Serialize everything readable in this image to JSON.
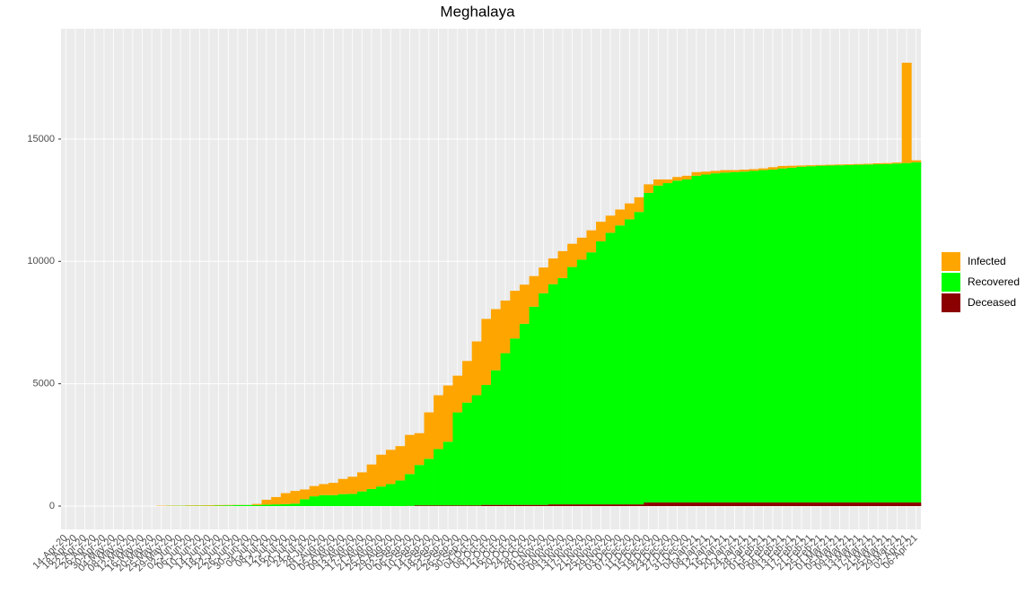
{
  "chart_data": {
    "type": "stacked_bar",
    "title": "Meghalaya",
    "categories": [
      "14-Apr-20",
      "18-Apr-20",
      "22-Apr-20",
      "26-Apr-20",
      "30-Apr-20",
      "04-May-20",
      "08-May-20",
      "12-May-20",
      "16-May-20",
      "20-May-20",
      "25-May-20",
      "29-May-20",
      "02-Jun-20",
      "06-Jun-20",
      "10-Jun-20",
      "14-Jun-20",
      "18-Jun-20",
      "22-Jun-20",
      "26-Jun-20",
      "30-Jun-20",
      "04-Jul-20",
      "08-Jul-20",
      "12-Jul-20",
      "16-Jul-20",
      "20-Jul-20",
      "24-Jul-20",
      "28-Jul-20",
      "01-Aug-20",
      "05-Aug-20",
      "09-Aug-20",
      "13-Aug-20",
      "17-Aug-20",
      "21-Aug-20",
      "25-Aug-20",
      "29-Aug-20",
      "02-Sep-20",
      "06-Sep-20",
      "10-Sep-20",
      "14-Sep-20",
      "18-Sep-20",
      "22-Sep-20",
      "26-Sep-20",
      "30-Sep-20",
      "04-Oct-20",
      "08-Oct-20",
      "12-Oct-20",
      "16-Oct-20",
      "20-Oct-20",
      "24-Oct-20",
      "28-Oct-20",
      "01-Nov-20",
      "05-Nov-20",
      "09-Nov-20",
      "13-Nov-20",
      "17-Nov-20",
      "21-Nov-20",
      "25-Nov-20",
      "29-Nov-20",
      "03-Dec-20",
      "07-Dec-20",
      "11-Dec-20",
      "15-Dec-20",
      "19-Dec-20",
      "23-Dec-20",
      "27-Dec-20",
      "31-Dec-20",
      "04-Jan-21",
      "08-Jan-21",
      "12-Jan-21",
      "16-Jan-21",
      "20-Jan-21",
      "24-Jan-21",
      "28-Jan-21",
      "01-Feb-21",
      "05-Feb-21",
      "09-Feb-21",
      "13-Feb-21",
      "17-Feb-21",
      "21-Feb-21",
      "25-Feb-21",
      "01-Mar-21",
      "05-Mar-21",
      "09-Mar-21",
      "13-Mar-21",
      "17-Mar-21",
      "21-Mar-21",
      "25-Mar-21",
      "29-Mar-21",
      "02-Apr-21",
      "06-Apr-21"
    ],
    "series": [
      {
        "name": "Infected",
        "color": "#FFA500",
        "values": [
          0,
          0,
          0,
          0,
          0,
          0,
          0,
          0,
          0,
          0,
          13,
          12,
          10,
          20,
          20,
          25,
          20,
          15,
          8,
          5,
          45,
          200,
          300,
          450,
          520,
          400,
          420,
          450,
          500,
          620,
          700,
          780,
          1000,
          1300,
          1400,
          1400,
          1600,
          1300,
          1900,
          2200,
          2300,
          1500,
          1700,
          2200,
          2700,
          2500,
          2150,
          1950,
          1600,
          1250,
          1050,
          1050,
          1100,
          950,
          900,
          900,
          800,
          700,
          650,
          650,
          600,
          350,
          250,
          150,
          150,
          150,
          150,
          120,
          100,
          100,
          80,
          80,
          70,
          70,
          100,
          100,
          80,
          50,
          40,
          30,
          30,
          30,
          30,
          30,
          30,
          40,
          40,
          40,
          4100,
          80
        ]
      },
      {
        "name": "Recovered",
        "color": "#00FF00",
        "values": [
          0,
          0,
          0,
          0,
          0,
          0,
          0,
          0,
          0,
          0,
          0,
          10,
          12,
          12,
          13,
          13,
          21,
          30,
          40,
          43,
          43,
          60,
          70,
          80,
          100,
          280,
          400,
          450,
          450,
          490,
          500,
          600,
          700,
          800,
          900,
          1050,
          1300,
          1650,
          1900,
          2300,
          2600,
          3800,
          4200,
          4500,
          4900,
          5500,
          6200,
          6800,
          7400,
          8100,
          8650,
          9000,
          9250,
          9700,
          10000,
          10300,
          10750,
          11100,
          11400,
          11650,
          11950,
          12650,
          12950,
          13050,
          13150,
          13200,
          13350,
          13400,
          13450,
          13480,
          13500,
          13520,
          13550,
          13580,
          13600,
          13650,
          13680,
          13720,
          13740,
          13760,
          13770,
          13780,
          13790,
          13800,
          13810,
          13820,
          13830,
          13850,
          13870,
          13900
        ]
      },
      {
        "name": "Deceased",
        "color": "#8B0000",
        "values": [
          0,
          0,
          0,
          0,
          0,
          0,
          0,
          0,
          0,
          0,
          0,
          0,
          0,
          0,
          0,
          0,
          0,
          0,
          0,
          0,
          0,
          0,
          0,
          0,
          0,
          0,
          0,
          0,
          0,
          0,
          0,
          0,
          0,
          0,
          0,
          0,
          10,
          30,
          30,
          30,
          30,
          30,
          30,
          30,
          50,
          50,
          50,
          50,
          50,
          50,
          50,
          70,
          70,
          70,
          70,
          70,
          70,
          70,
          70,
          70,
          70,
          150,
          150,
          150,
          150,
          150,
          150,
          150,
          150,
          150,
          150,
          150,
          150,
          150,
          150,
          150,
          150,
          150,
          150,
          150,
          150,
          150,
          150,
          150,
          150,
          150,
          150,
          150,
          150,
          150
        ]
      }
    ],
    "ylim": [
      -953,
      19509
    ],
    "yticks": [
      0,
      5000,
      10000,
      15000
    ],
    "grid": true,
    "legend": "right"
  }
}
